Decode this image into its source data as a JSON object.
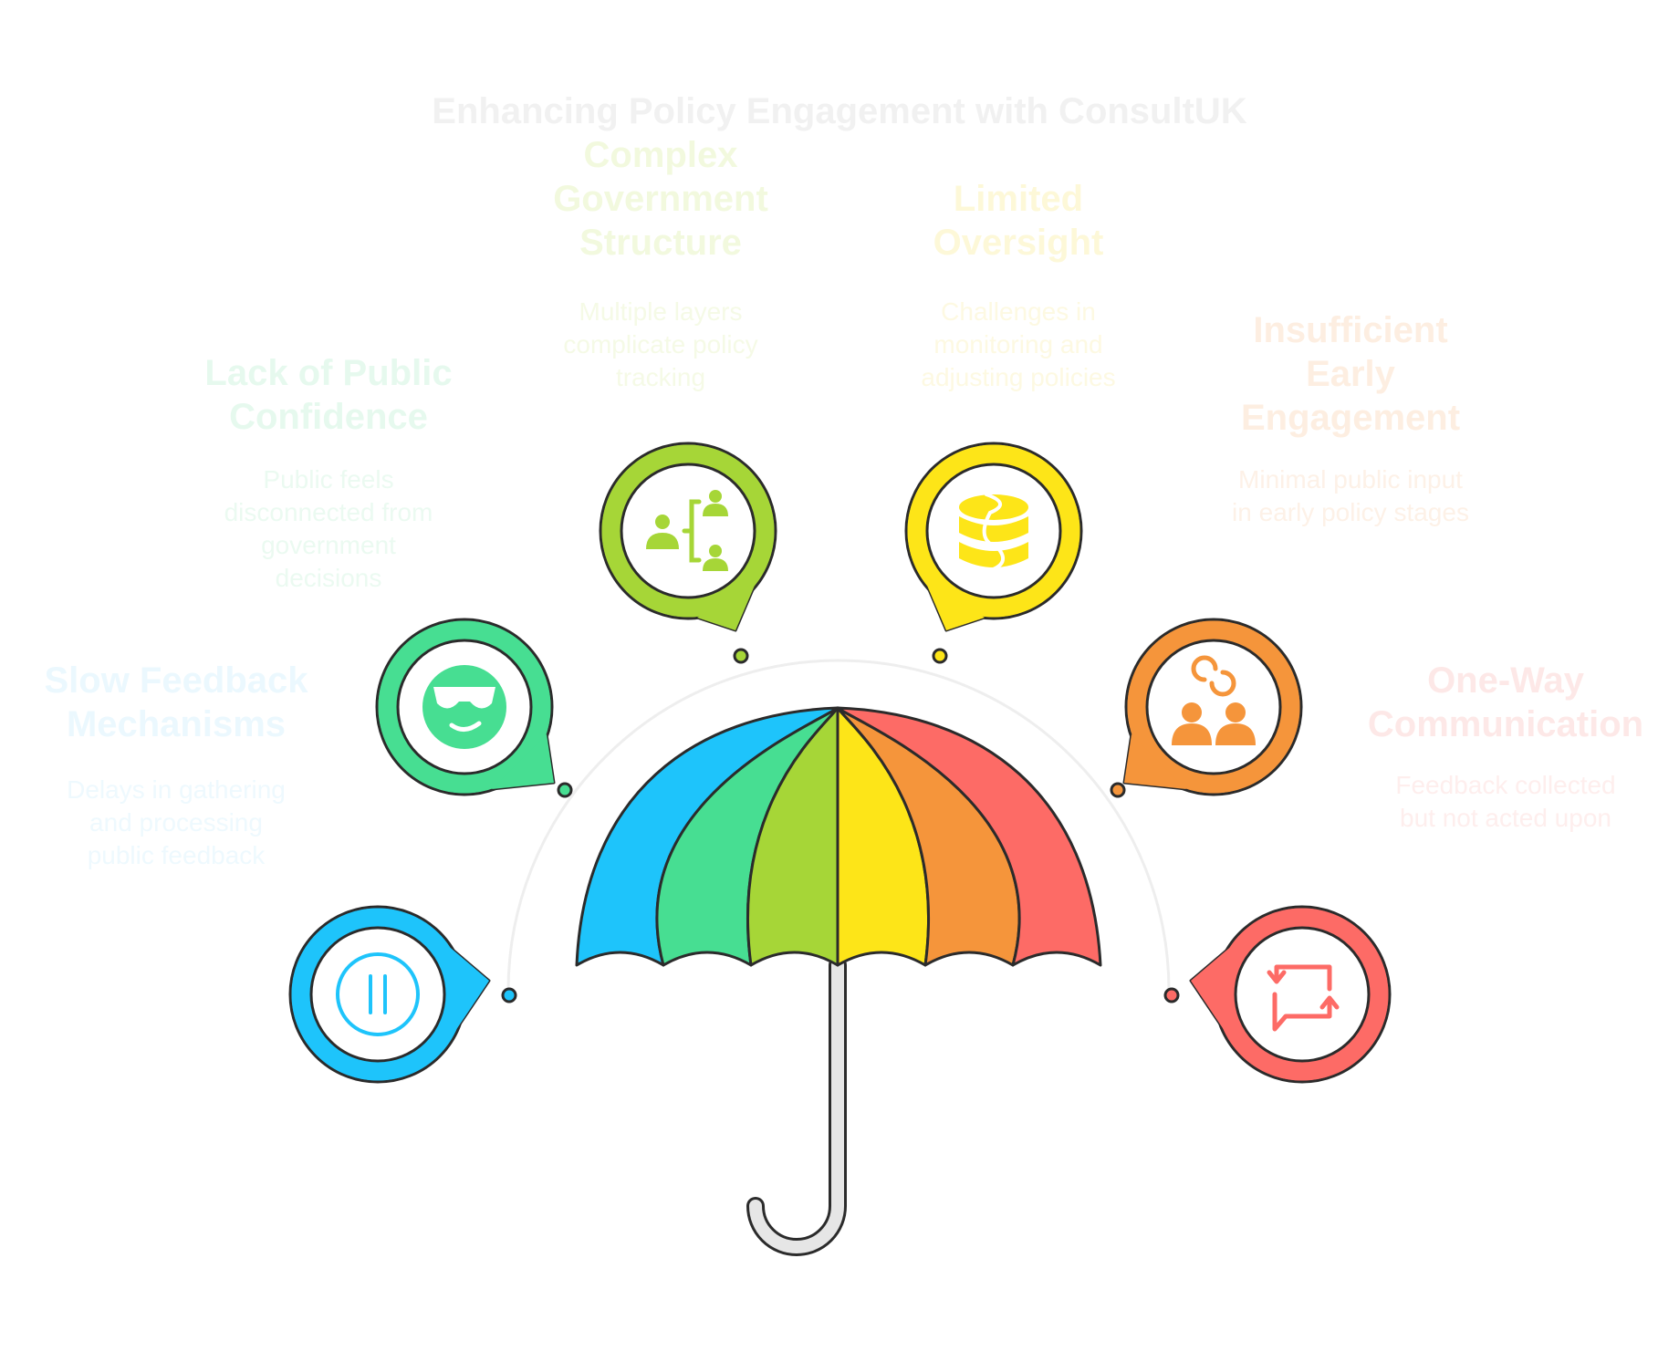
{
  "title": "Enhancing Policy Engagement with ConsultUK",
  "colors": {
    "title": "#f1f1f1",
    "outline": "#2b2b2b",
    "arc": "#eeeeee",
    "handle": "#e6e6e6"
  },
  "umbrella_panels": [
    "#1ec4fb",
    "#47de92",
    "#a6d637",
    "#fde518",
    "#f5953b",
    "#fd6b66"
  ],
  "items": [
    {
      "id": "slow-feedback",
      "title": "Slow Feedback Mechanisms",
      "title_lines": [
        "Slow Feedback",
        "Mechanisms"
      ],
      "description": "Delays in gathering and processing public feedback",
      "desc_lines": [
        "Delays in gathering",
        "and processing",
        "public feedback"
      ],
      "color": "#1ec4fb",
      "text_color": "#ebf8fe",
      "desc_color": "#eef9fe",
      "icon": "pause-icon"
    },
    {
      "id": "lack-confidence",
      "title": "Lack of Public Confidence",
      "title_lines": [
        "Lack of Public",
        "Confidence"
      ],
      "description": "Public feels disconnected from government decisions",
      "desc_lines": [
        "Public feels",
        "disconnected from",
        "government",
        "decisions"
      ],
      "color": "#47de92",
      "text_color": "#e6f9ee",
      "desc_color": "#ebfaf1",
      "icon": "sunglasses-face-icon"
    },
    {
      "id": "complex-structure",
      "title": "Complex Government Structure",
      "title_lines": [
        "Complex",
        "Government",
        "Structure"
      ],
      "description": "Multiple layers complicate policy tracking",
      "desc_lines": [
        "Multiple layers",
        "complicate policy",
        "tracking"
      ],
      "color": "#a6d637",
      "text_color": "#f2f9de",
      "desc_color": "#f5fae6",
      "icon": "hierarchy-icon"
    },
    {
      "id": "limited-oversight",
      "title": "Limited Oversight",
      "title_lines": [
        "Limited",
        "Oversight"
      ],
      "description": "Challenges in monitoring and adjusting policies",
      "desc_lines": [
        "Challenges in",
        "monitoring and",
        "adjusting policies"
      ],
      "color": "#fde518",
      "text_color": "#fdf8d8",
      "desc_color": "#fdf9e2",
      "icon": "database-icon"
    },
    {
      "id": "insufficient-engagement",
      "title": "Insufficient Early Engagement",
      "title_lines": [
        "Insufficient",
        "Early",
        "Engagement"
      ],
      "description": "Minimal public input in early policy stages",
      "desc_lines": [
        "Minimal public input",
        "in early policy stages"
      ],
      "color": "#f5953b",
      "text_color": "#fdeee1",
      "desc_color": "#fdf1e7",
      "icon": "people-exchange-icon"
    },
    {
      "id": "one-way",
      "title": "One-Way Communication",
      "title_lines": [
        "One-Way",
        "Communication"
      ],
      "description": "Feedback collected but not acted upon",
      "desc_lines": [
        "Feedback collected",
        "but not acted upon"
      ],
      "color": "#fd6b66",
      "text_color": "#fde8e7",
      "desc_color": "#feeeed",
      "icon": "repeat-chat-icon"
    }
  ]
}
